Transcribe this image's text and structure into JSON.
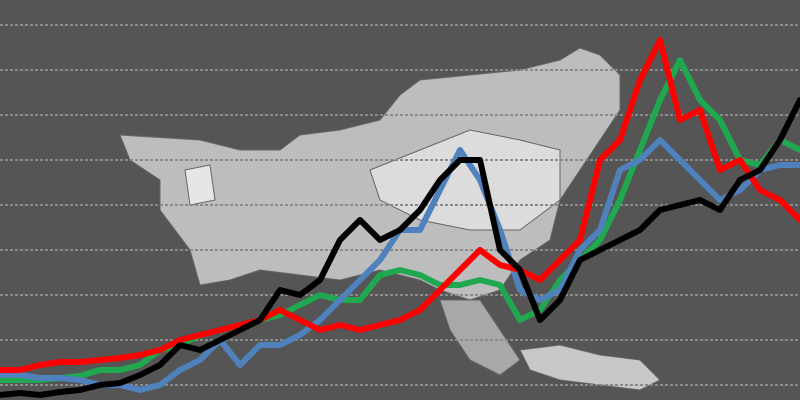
{
  "chart_data": {
    "type": "line",
    "x": [
      0,
      1,
      2,
      3,
      4,
      5,
      6,
      7,
      8,
      9,
      10,
      11,
      12,
      13,
      14,
      15,
      16,
      17,
      18,
      19,
      20,
      21,
      22,
      23,
      24,
      25,
      26,
      27,
      28,
      29,
      30,
      31,
      32,
      33,
      34,
      35,
      36,
      37,
      38,
      39,
      40
    ],
    "xlim": [
      0,
      40
    ],
    "ylim": [
      0,
      400
    ],
    "yticks": [
      15,
      60,
      105,
      150,
      195,
      240,
      285,
      330,
      375
    ],
    "grid": true,
    "series": [
      {
        "color": "#1fa84f",
        "values": [
          20,
          20,
          20,
          22,
          24,
          30,
          30,
          35,
          50,
          55,
          65,
          70,
          75,
          80,
          85,
          95,
          105,
          100,
          100,
          125,
          130,
          125,
          115,
          115,
          120,
          115,
          80,
          90,
          120,
          140,
          160,
          200,
          250,
          300,
          340,
          300,
          280,
          240,
          235,
          260,
          250
        ]
      },
      {
        "color": "#4f81bd",
        "values": [
          25,
          25,
          22,
          22,
          20,
          15,
          15,
          10,
          15,
          30,
          40,
          60,
          35,
          55,
          55,
          65,
          80,
          100,
          120,
          140,
          170,
          170,
          210,
          250,
          220,
          170,
          110,
          100,
          110,
          150,
          170,
          230,
          240,
          260,
          240,
          220,
          200,
          210,
          230,
          235,
          235
        ]
      },
      {
        "color": "#ff0000",
        "values": [
          30,
          30,
          35,
          38,
          38,
          40,
          42,
          45,
          50,
          60,
          65,
          70,
          75,
          80,
          90,
          80,
          70,
          75,
          70,
          75,
          80,
          90,
          110,
          130,
          150,
          135,
          130,
          120,
          140,
          160,
          240,
          260,
          320,
          360,
          280,
          290,
          230,
          240,
          210,
          200,
          180
        ]
      },
      {
        "color": "#000000",
        "values": [
          5,
          7,
          5,
          8,
          10,
          15,
          17,
          25,
          35,
          55,
          50,
          60,
          70,
          80,
          110,
          105,
          120,
          160,
          180,
          160,
          170,
          190,
          220,
          240,
          240,
          150,
          130,
          80,
          100,
          140,
          150,
          160,
          170,
          190,
          195,
          200,
          190,
          220,
          230,
          260,
          300
        ]
      }
    ]
  }
}
